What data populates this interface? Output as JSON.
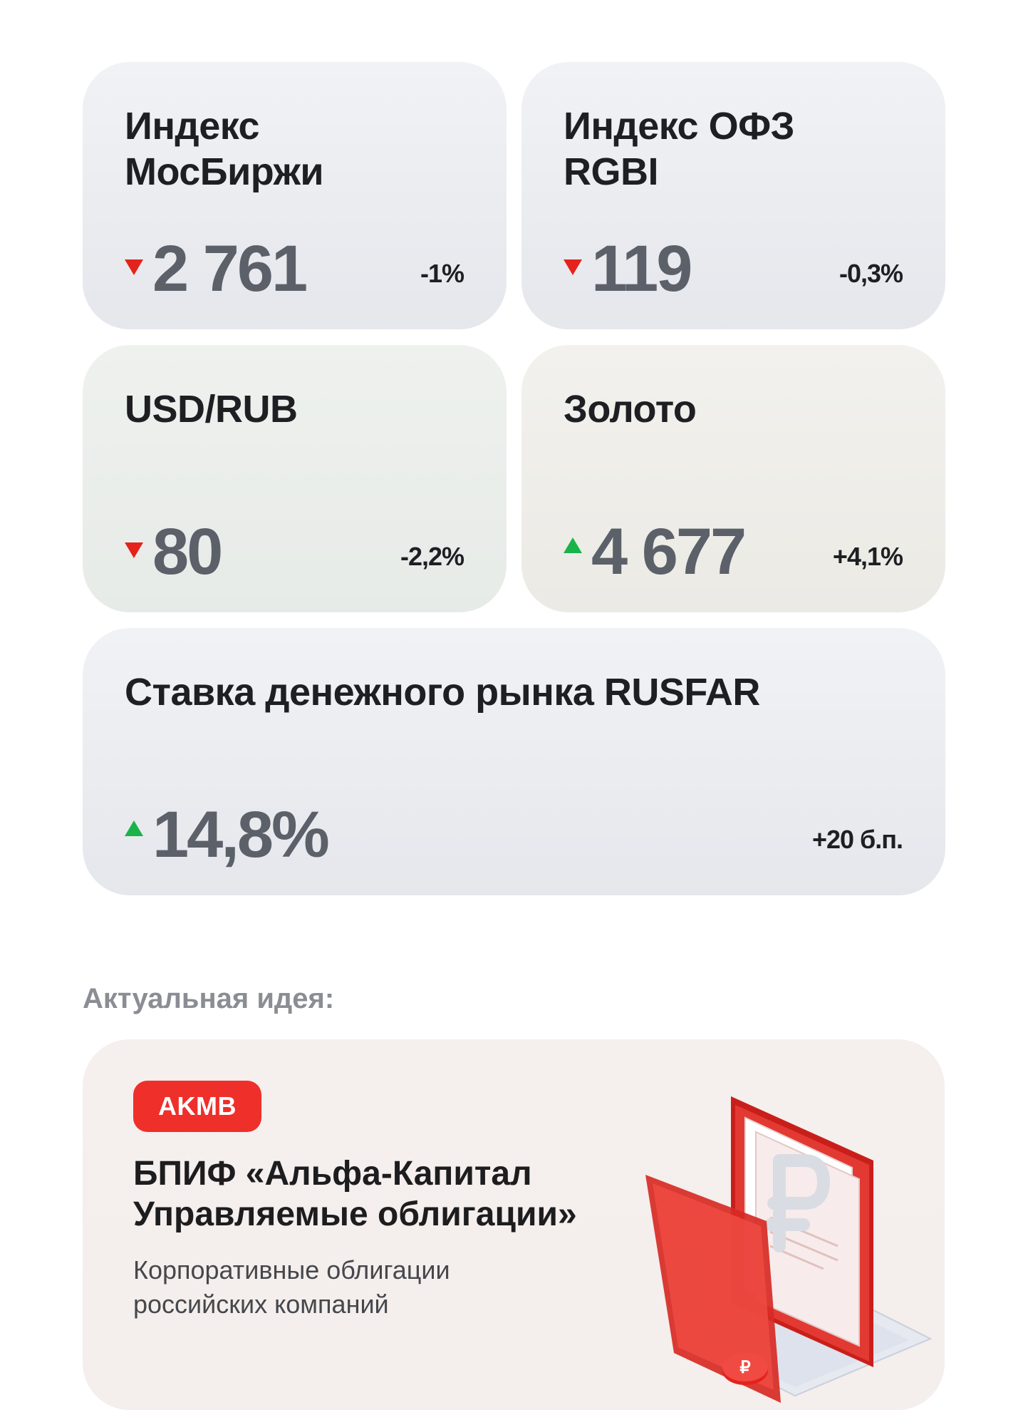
{
  "indicators": [
    {
      "title_line1": "Индекс",
      "title_line2": "МосБиржи",
      "value": "2 761",
      "change": "-1%",
      "direction": "down"
    },
    {
      "title_line1": "Индекс ОФЗ",
      "title_line2": "RGBI",
      "value": "119",
      "change": "-0,3%",
      "direction": "down"
    },
    {
      "title_line1": "USD/RUB",
      "title_line2": "",
      "value": "80",
      "change": "-2,2%",
      "direction": "down"
    },
    {
      "title_line1": "Золото",
      "title_line2": "",
      "value": "4 677",
      "change": "+4,1%",
      "direction": "up"
    },
    {
      "title_line1": "Ставка денежного рынка RUSFAR",
      "title_line2": "",
      "value": "14,8%",
      "change": "+20 б.п.",
      "direction": "up"
    }
  ],
  "idea": {
    "section_title": "Актуальная идея:",
    "ticker": "AKMB",
    "title": "БПИФ «Альфа-Капитал Управляемые облигации»",
    "subtitle": "Корпоративные облигации российских компаний"
  },
  "colors": {
    "down": "#e3231c",
    "up": "#19b34a",
    "badge": "#ef2f2a"
  },
  "icons": [
    "triangle-down-icon",
    "triangle-up-icon",
    "folder-ruble-illustration"
  ]
}
